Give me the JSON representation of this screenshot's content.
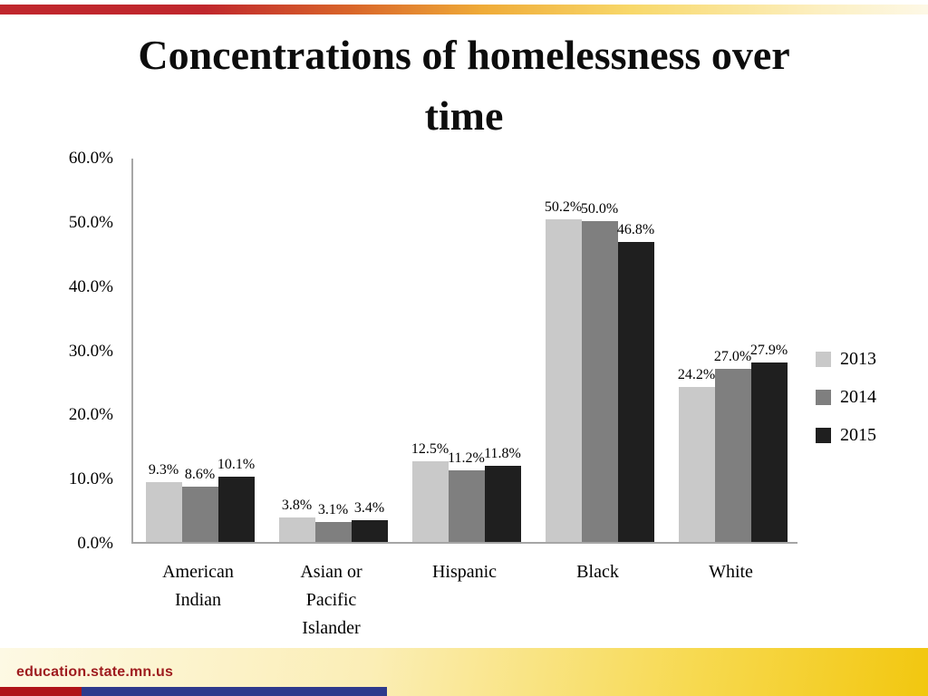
{
  "slide": {
    "title": "Concentrations of homelessness over\ntime"
  },
  "footer": {
    "site": "education.state.mn.us"
  },
  "theme": {
    "accent_red": "#c0272d",
    "accent_gold": "#f2c70f",
    "accent_blue": "#2e3a8c",
    "footer_text_color": "#9e1b1e",
    "axis_line_color": "#a6a6a6"
  },
  "chart_data": {
    "type": "bar",
    "title": "",
    "xlabel": "",
    "ylabel": "",
    "ylim": [
      0,
      60
    ],
    "ytick_labels": [
      "60.0%",
      "50.0%",
      "40.0%",
      "30.0%",
      "20.0%",
      "10.0%",
      "0.0%"
    ],
    "grid": false,
    "legend_position": "right",
    "data_labels": true,
    "data_label_format": "{value}%",
    "categories": [
      "American Indian",
      "Asian or Pacific Islander",
      "Hispanic",
      "Black",
      "White"
    ],
    "category_display": [
      "American\nIndian",
      "Asian or\nPacific\nIslander",
      "Hispanic",
      "Black",
      "White"
    ],
    "series": [
      {
        "name": "2013",
        "color": "#c9c9c9",
        "values": [
          9.3,
          3.8,
          12.5,
          50.2,
          24.2
        ]
      },
      {
        "name": "2014",
        "color": "#7f7f7f",
        "values": [
          8.6,
          3.1,
          11.2,
          50.0,
          27.0
        ]
      },
      {
        "name": "2015",
        "color": "#1f1f1f",
        "values": [
          10.1,
          3.4,
          11.8,
          46.8,
          27.9
        ]
      }
    ]
  }
}
